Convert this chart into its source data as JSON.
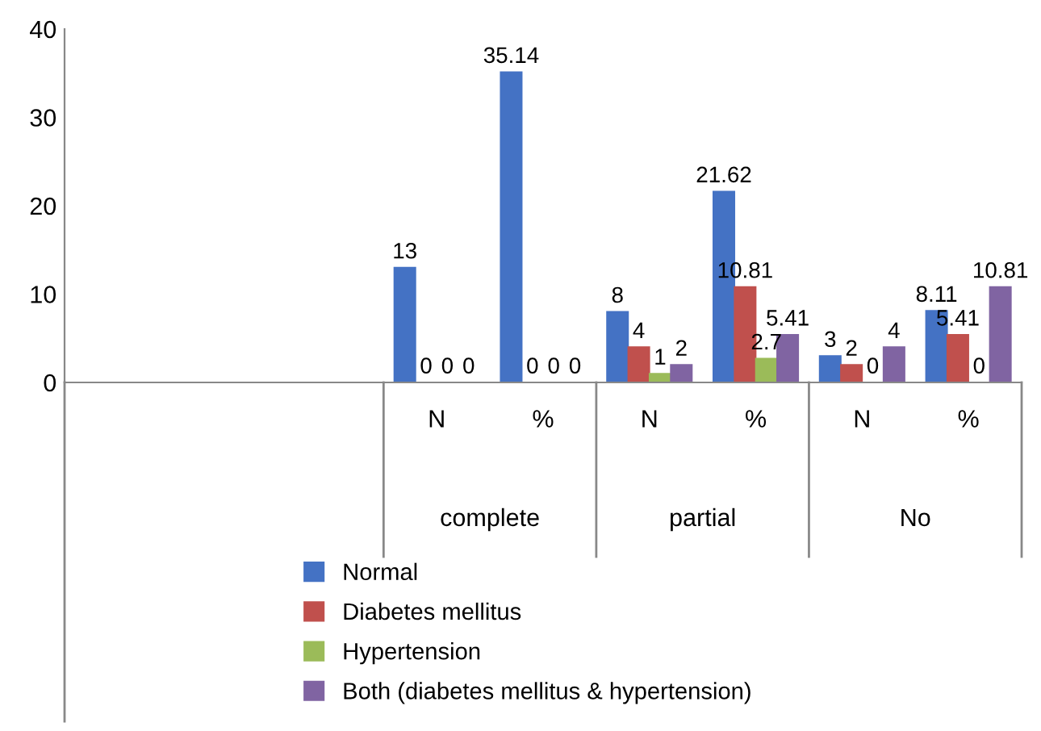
{
  "chart_data": {
    "type": "bar",
    "categories": [
      null,
      null,
      null,
      "N",
      "%",
      "N",
      "%",
      "N",
      "%"
    ],
    "series": [
      {
        "name": "Normal",
        "color": "#4472c4",
        "values": [
          null,
          null,
          null,
          13,
          35.14,
          8,
          21.62,
          3,
          8.11
        ]
      },
      {
        "name": "Diabetes mellitus",
        "color": "#c0504d",
        "values": [
          null,
          null,
          null,
          0,
          0,
          4,
          10.81,
          2,
          5.41
        ]
      },
      {
        "name": "Hypertension",
        "color": "#9bbb59",
        "values": [
          null,
          null,
          null,
          0,
          0,
          1,
          2.7,
          0,
          0
        ]
      },
      {
        "name": "Both (diabetes mellitus & hypertension)",
        "color": "#8064a2",
        "values": [
          null,
          null,
          null,
          0,
          0,
          2,
          5.41,
          4,
          10.81
        ]
      }
    ],
    "annotations": [
      "complete",
      "partial",
      "No"
    ],
    "ylim": [
      0,
      40
    ],
    "yticks": [
      0,
      10,
      20,
      30,
      40
    ],
    "grid": false,
    "legend": "bottom",
    "data_labels": true
  }
}
